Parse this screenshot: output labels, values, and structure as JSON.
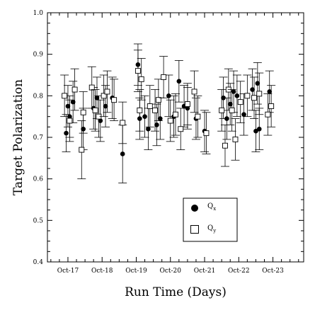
{
  "chart_data": {
    "type": "scatter",
    "xlabel": "Run Time (Days)",
    "ylabel": "Target Polarization",
    "x_tick_labels": [
      "Oct-17",
      "Oct-18",
      "Oct-19",
      "Oct-20",
      "Oct-21",
      "Oct-22",
      "Oct-23"
    ],
    "x_range_days": [
      16.4,
      23.9
    ],
    "ylim": [
      0.4,
      1.0
    ],
    "y_ticks": [
      "0.4",
      "0.5",
      "0.6",
      "0.7",
      "0.8",
      "0.9",
      "1.0"
    ],
    "grid": false,
    "legend_position": "bottom-center",
    "series": [
      {
        "name": "Q",
        "subscript": "x",
        "marker": "filled-circle",
        "color": "#000000",
        "points": [
          {
            "x": 16.95,
            "y": 0.71,
            "err": 0.045
          },
          {
            "x": 17.0,
            "y": 0.775,
            "err": 0.05
          },
          {
            "x": 17.05,
            "y": 0.75,
            "err": 0.05
          },
          {
            "x": 17.15,
            "y": 0.785,
            "err": 0.05
          },
          {
            "x": 17.45,
            "y": 0.72,
            "err": 0.05
          },
          {
            "x": 17.75,
            "y": 0.77,
            "err": 0.05
          },
          {
            "x": 17.85,
            "y": 0.795,
            "err": 0.05
          },
          {
            "x": 17.95,
            "y": 0.74,
            "err": 0.05
          },
          {
            "x": 18.1,
            "y": 0.775,
            "err": 0.05
          },
          {
            "x": 18.3,
            "y": 0.795,
            "err": 0.05
          },
          {
            "x": 18.6,
            "y": 0.66,
            "err": 0.07
          },
          {
            "x": 19.05,
            "y": 0.875,
            "err": 0.05
          },
          {
            "x": 19.1,
            "y": 0.745,
            "err": 0.05
          },
          {
            "x": 19.25,
            "y": 0.75,
            "err": 0.05
          },
          {
            "x": 19.35,
            "y": 0.72,
            "err": 0.05
          },
          {
            "x": 19.6,
            "y": 0.73,
            "err": 0.05
          },
          {
            "x": 19.7,
            "y": 0.745,
            "err": 0.05
          },
          {
            "x": 19.95,
            "y": 0.8,
            "err": 0.05
          },
          {
            "x": 20.1,
            "y": 0.75,
            "err": 0.05
          },
          {
            "x": 20.25,
            "y": 0.835,
            "err": 0.05
          },
          {
            "x": 20.4,
            "y": 0.775,
            "err": 0.05
          },
          {
            "x": 20.5,
            "y": 0.77,
            "err": 0.05
          },
          {
            "x": 20.75,
            "y": 0.745,
            "err": 0.05
          },
          {
            "x": 21.0,
            "y": 0.715,
            "err": 0.05
          },
          {
            "x": 21.55,
            "y": 0.795,
            "err": 0.05
          },
          {
            "x": 21.65,
            "y": 0.745,
            "err": 0.05
          },
          {
            "x": 21.75,
            "y": 0.78,
            "err": 0.05
          },
          {
            "x": 21.85,
            "y": 0.81,
            "err": 0.05
          },
          {
            "x": 21.95,
            "y": 0.8,
            "err": 0.05
          },
          {
            "x": 22.15,
            "y": 0.755,
            "err": 0.05
          },
          {
            "x": 22.4,
            "y": 0.815,
            "err": 0.05
          },
          {
            "x": 22.5,
            "y": 0.715,
            "err": 0.05
          },
          {
            "x": 22.55,
            "y": 0.83,
            "err": 0.05
          },
          {
            "x": 22.6,
            "y": 0.72,
            "err": 0.05
          },
          {
            "x": 22.9,
            "y": 0.81,
            "err": 0.05
          }
        ]
      },
      {
        "name": "Q",
        "subscript": "y",
        "marker": "open-square",
        "color": "#000000",
        "points": [
          {
            "x": 16.9,
            "y": 0.8,
            "err": 0.05
          },
          {
            "x": 17.05,
            "y": 0.74,
            "err": 0.05
          },
          {
            "x": 17.2,
            "y": 0.815,
            "err": 0.05
          },
          {
            "x": 17.4,
            "y": 0.67,
            "err": 0.07
          },
          {
            "x": 17.45,
            "y": 0.76,
            "err": 0.05
          },
          {
            "x": 17.7,
            "y": 0.82,
            "err": 0.05
          },
          {
            "x": 17.8,
            "y": 0.765,
            "err": 0.05
          },
          {
            "x": 17.9,
            "y": 0.75,
            "err": 0.05
          },
          {
            "x": 18.05,
            "y": 0.8,
            "err": 0.05
          },
          {
            "x": 18.15,
            "y": 0.81,
            "err": 0.05
          },
          {
            "x": 18.35,
            "y": 0.79,
            "err": 0.05
          },
          {
            "x": 18.6,
            "y": 0.735,
            "err": 0.05
          },
          {
            "x": 19.05,
            "y": 0.86,
            "err": 0.05
          },
          {
            "x": 19.1,
            "y": 0.765,
            "err": 0.05
          },
          {
            "x": 19.15,
            "y": 0.84,
            "err": 0.05
          },
          {
            "x": 19.4,
            "y": 0.775,
            "err": 0.05
          },
          {
            "x": 19.55,
            "y": 0.765,
            "err": 0.05
          },
          {
            "x": 19.65,
            "y": 0.79,
            "err": 0.05
          },
          {
            "x": 19.8,
            "y": 0.845,
            "err": 0.05
          },
          {
            "x": 20.0,
            "y": 0.74,
            "err": 0.05
          },
          {
            "x": 20.15,
            "y": 0.755,
            "err": 0.05
          },
          {
            "x": 20.3,
            "y": 0.72,
            "err": 0.05
          },
          {
            "x": 20.5,
            "y": 0.78,
            "err": 0.05
          },
          {
            "x": 20.7,
            "y": 0.81,
            "err": 0.05
          },
          {
            "x": 20.8,
            "y": 0.75,
            "err": 0.05
          },
          {
            "x": 21.05,
            "y": 0.71,
            "err": 0.05
          },
          {
            "x": 21.5,
            "y": 0.765,
            "err": 0.05
          },
          {
            "x": 21.6,
            "y": 0.68,
            "err": 0.05
          },
          {
            "x": 21.7,
            "y": 0.815,
            "err": 0.05
          },
          {
            "x": 21.8,
            "y": 0.765,
            "err": 0.05
          },
          {
            "x": 21.9,
            "y": 0.695,
            "err": 0.05
          },
          {
            "x": 22.05,
            "y": 0.785,
            "err": 0.05
          },
          {
            "x": 22.25,
            "y": 0.8,
            "err": 0.05
          },
          {
            "x": 22.45,
            "y": 0.795,
            "err": 0.05
          },
          {
            "x": 22.6,
            "y": 0.805,
            "err": 0.05
          },
          {
            "x": 22.85,
            "y": 0.755,
            "err": 0.05
          },
          {
            "x": 22.95,
            "y": 0.775,
            "err": 0.05
          }
        ]
      }
    ]
  }
}
